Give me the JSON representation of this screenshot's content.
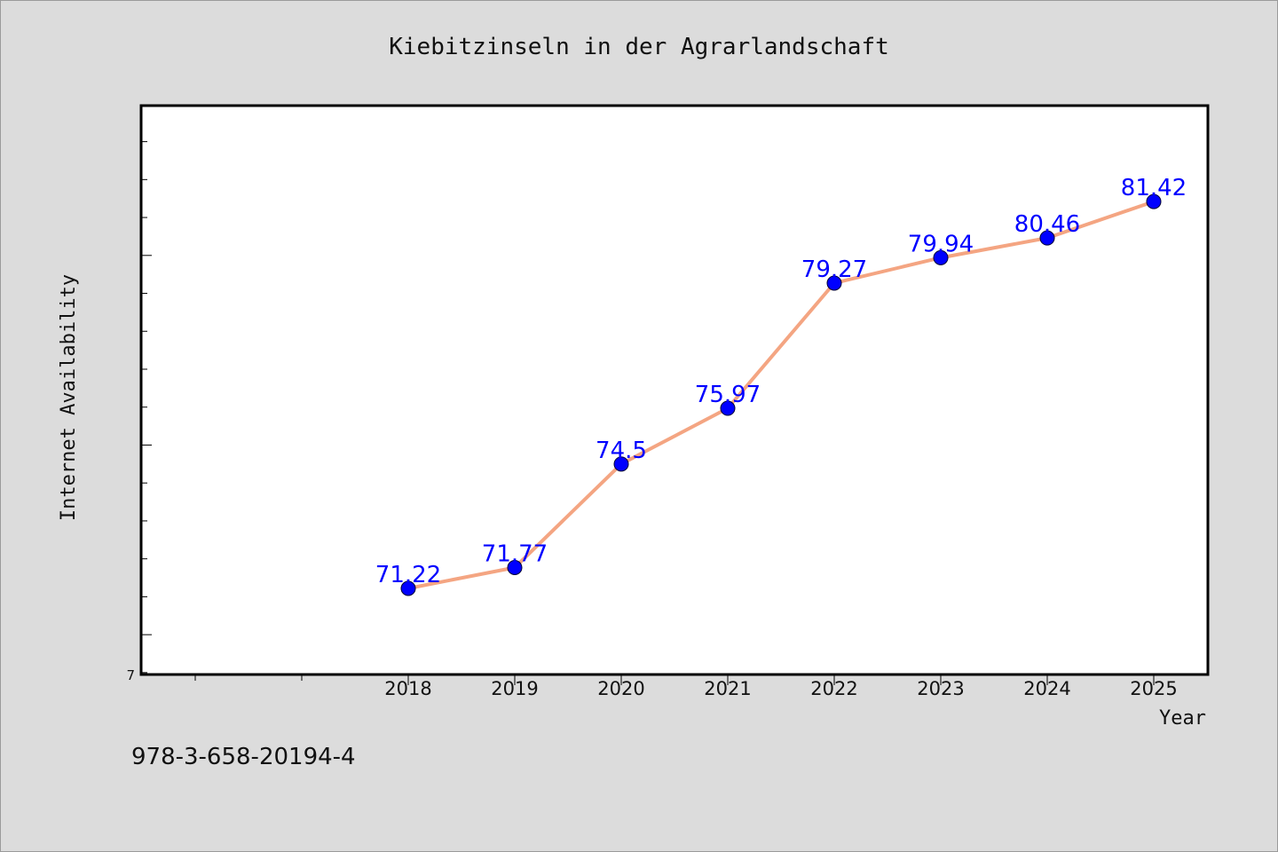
{
  "chart_data": {
    "type": "line",
    "title": "Kiebitzinseln in der Agrarlandschaft",
    "xlabel": "Year",
    "ylabel": "Internet Availability",
    "categories": [
      "2018",
      "2019",
      "2020",
      "2021",
      "2022",
      "2023",
      "2024",
      "2025"
    ],
    "series": [
      {
        "values": [
          71.22,
          71.77,
          74.5,
          75.97,
          79.27,
          79.94,
          80.46,
          81.42
        ],
        "line_color": "#f4a582",
        "marker_color": "#0000ff"
      }
    ],
    "data_labels": [
      "71.22",
      "71.77",
      "74.5",
      "75.97",
      "79.27",
      "79.94",
      "80.46",
      "81.42"
    ],
    "ylim": [
      68.95,
      83.95
    ],
    "y_tick_labels": [
      "7"
    ],
    "grid": false,
    "legend": false,
    "background": "#dcdcdc",
    "plot_background": "#ffffff"
  },
  "footer": {
    "isbn": "978-3-658-20194-4"
  }
}
